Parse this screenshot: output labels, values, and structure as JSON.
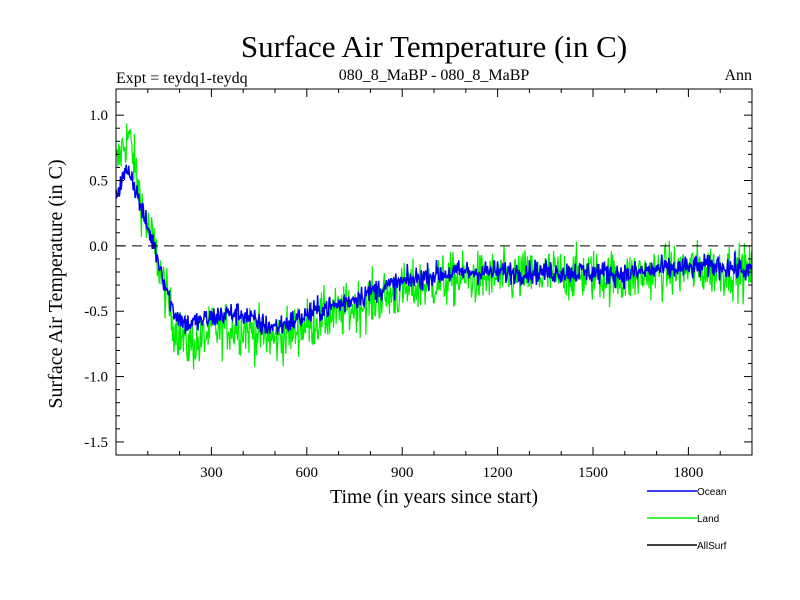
{
  "chart_data": {
    "type": "line",
    "title": "Surface Air Temperature (in C)",
    "subtitle_left": "Expt = teydq1-teydq",
    "subtitle_center": "080_8_MaBP - 080_8_MaBP",
    "subtitle_right": "Ann",
    "xlabel": "Time (in years since start)",
    "ylabel": "Surface Air Temperature (in C)",
    "xlim": [
      0,
      2000
    ],
    "ylim": [
      -1.6,
      1.2
    ],
    "xticks": [
      300,
      600,
      900,
      1200,
      1500,
      1800
    ],
    "yticks": [
      -1.5,
      -1.0,
      -0.5,
      0.0,
      0.5,
      1.0
    ],
    "xtick_labels": [
      "300",
      "600",
      "900",
      "1200",
      "1500",
      "1800"
    ],
    "ytick_labels": [
      "-1.5",
      "-1.0",
      "-0.5",
      "0.0",
      "0.5",
      "1.0"
    ],
    "reference_line": 0.0,
    "series": [
      {
        "name": "Land",
        "color": "#00ee00",
        "trend": [
          [
            0,
            0.6
          ],
          [
            20,
            0.75
          ],
          [
            40,
            0.85
          ],
          [
            60,
            0.6
          ],
          [
            90,
            0.2
          ],
          [
            120,
            0.0
          ],
          [
            150,
            -0.3
          ],
          [
            180,
            -0.6
          ],
          [
            220,
            -0.75
          ],
          [
            260,
            -0.75
          ],
          [
            300,
            -0.65
          ],
          [
            350,
            -0.62
          ],
          [
            400,
            -0.62
          ],
          [
            450,
            -0.68
          ],
          [
            500,
            -0.72
          ],
          [
            550,
            -0.66
          ],
          [
            600,
            -0.6
          ],
          [
            650,
            -0.55
          ],
          [
            700,
            -0.52
          ],
          [
            800,
            -0.42
          ],
          [
            900,
            -0.35
          ],
          [
            1000,
            -0.28
          ],
          [
            1100,
            -0.25
          ],
          [
            1200,
            -0.25
          ],
          [
            1300,
            -0.23
          ],
          [
            1400,
            -0.22
          ],
          [
            1500,
            -0.22
          ],
          [
            1600,
            -0.25
          ],
          [
            1700,
            -0.2
          ],
          [
            1800,
            -0.18
          ],
          [
            1900,
            -0.18
          ],
          [
            2000,
            -0.2
          ]
        ],
        "noise": 0.2
      },
      {
        "name": "Ocean",
        "color": "#0000ee",
        "trend": [
          [
            0,
            0.4
          ],
          [
            20,
            0.5
          ],
          [
            40,
            0.6
          ],
          [
            60,
            0.45
          ],
          [
            90,
            0.2
          ],
          [
            120,
            0.0
          ],
          [
            150,
            -0.25
          ],
          [
            180,
            -0.5
          ],
          [
            220,
            -0.6
          ],
          [
            260,
            -0.58
          ],
          [
            300,
            -0.55
          ],
          [
            350,
            -0.52
          ],
          [
            400,
            -0.52
          ],
          [
            450,
            -0.6
          ],
          [
            500,
            -0.62
          ],
          [
            550,
            -0.58
          ],
          [
            600,
            -0.53
          ],
          [
            650,
            -0.48
          ],
          [
            700,
            -0.45
          ],
          [
            800,
            -0.35
          ],
          [
            900,
            -0.28
          ],
          [
            1000,
            -0.22
          ],
          [
            1100,
            -0.2
          ],
          [
            1200,
            -0.2
          ],
          [
            1300,
            -0.2
          ],
          [
            1400,
            -0.2
          ],
          [
            1500,
            -0.2
          ],
          [
            1600,
            -0.22
          ],
          [
            1700,
            -0.18
          ],
          [
            1800,
            -0.17
          ],
          [
            1900,
            -0.15
          ],
          [
            2000,
            -0.2
          ]
        ],
        "noise": 0.09
      },
      {
        "name": "AllSurf",
        "color": "#000000",
        "trend": [],
        "noise": 0
      }
    ],
    "legend_order": [
      "Ocean",
      "Land",
      "AllSurf"
    ],
    "legend_position": "bottom-right"
  }
}
